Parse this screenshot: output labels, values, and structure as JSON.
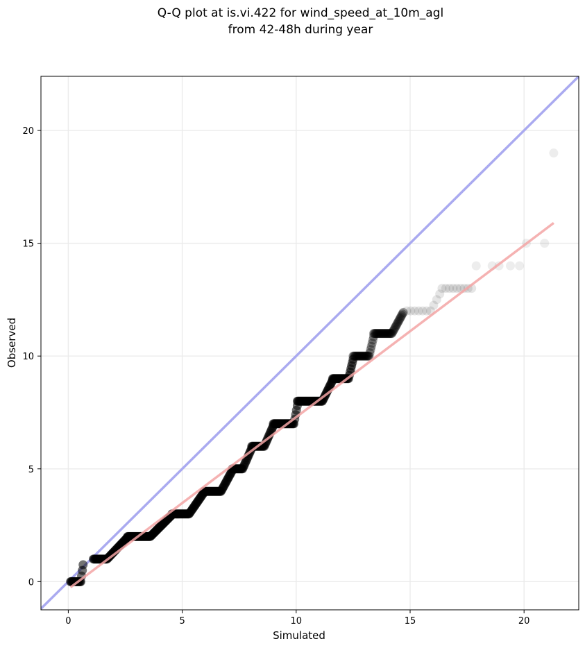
{
  "chart_data": {
    "type": "scatter",
    "title_line1": "Q-Q plot at is.vi.422 for wind_speed_at_10m_agl",
    "title_line2": "from 42-48h during year",
    "xlabel": "Simulated",
    "ylabel": "Observed",
    "xlim": [
      -1.2,
      22.4
    ],
    "ylim": [
      -1.25,
      22.4
    ],
    "xticks": [
      0,
      5,
      10,
      15,
      20
    ],
    "yticks": [
      0,
      5,
      10,
      15,
      20
    ],
    "grid": true,
    "identity_line": {
      "color": "#aaaaf0",
      "from": [
        -1.2,
        -1.2
      ],
      "to": [
        22.4,
        22.4
      ]
    },
    "fit_line": {
      "color": "#f3a5a5",
      "from": [
        0.1,
        -0.25
      ],
      "to": [
        21.3,
        15.9
      ]
    },
    "steps": [
      {
        "y": 0,
        "x_start": 0.1,
        "x_end": 0.55,
        "ramp_to": 0.65
      },
      {
        "y": 1,
        "x_start": 1.1,
        "x_end": 1.7,
        "ramp_to": 2.6
      },
      {
        "y": 2,
        "x_start": 2.6,
        "x_end": 3.6,
        "ramp_to": 4.55
      },
      {
        "y": 3,
        "x_start": 4.55,
        "x_end": 5.3,
        "ramp_to": 5.95
      },
      {
        "y": 4,
        "x_start": 5.95,
        "x_end": 6.7,
        "ramp_to": 7.2
      },
      {
        "y": 5,
        "x_start": 7.2,
        "x_end": 7.65,
        "ramp_to": 8.05
      },
      {
        "y": 6,
        "x_start": 8.05,
        "x_end": 8.6,
        "ramp_to": 9.0
      },
      {
        "y": 7,
        "x_start": 9.0,
        "x_end": 9.9,
        "ramp_to": 10.05
      },
      {
        "y": 8,
        "x_start": 10.05,
        "x_end": 11.15,
        "ramp_to": 11.6
      },
      {
        "y": 9,
        "x_start": 11.6,
        "x_end": 12.3,
        "ramp_to": 12.5
      },
      {
        "y": 10,
        "x_start": 12.5,
        "x_end": 13.2,
        "ramp_to": 13.4
      },
      {
        "y": 11,
        "x_start": 13.4,
        "x_end": 14.2,
        "ramp_to": 14.7
      },
      {
        "y": 12,
        "x_start": 14.85,
        "x_end": 15.9,
        "ramp_to": 16.3
      },
      {
        "y": 13,
        "x_start": 16.4,
        "x_end": 17.7,
        "ramp_to": 17.7
      }
    ],
    "sparse_points": [
      {
        "x": 17.9,
        "y": 14
      },
      {
        "x": 18.6,
        "y": 14
      },
      {
        "x": 18.9,
        "y": 14
      },
      {
        "x": 19.4,
        "y": 14
      },
      {
        "x": 19.8,
        "y": 14
      },
      {
        "x": 20.1,
        "y": 15
      },
      {
        "x": 20.9,
        "y": 15
      },
      {
        "x": 21.3,
        "y": 19
      }
    ]
  }
}
